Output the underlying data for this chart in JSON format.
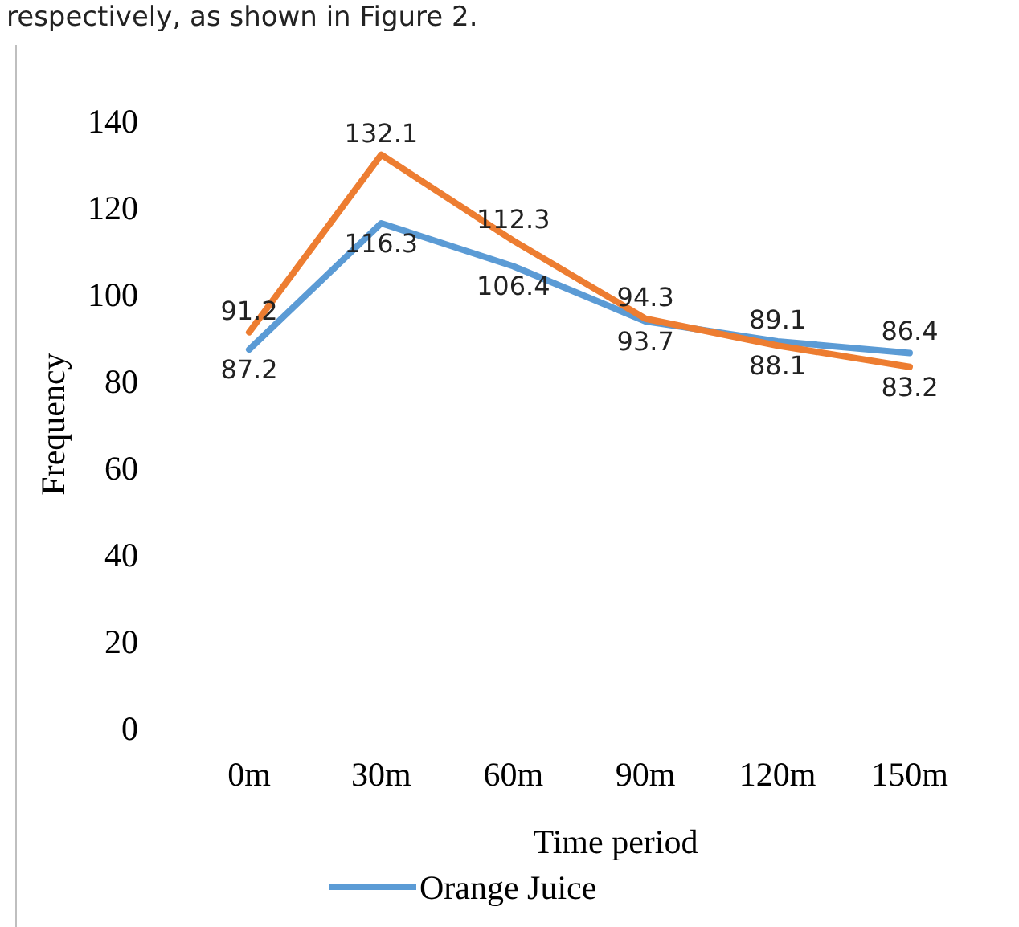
{
  "chart_data": {
    "type": "line",
    "xlabel": "Time period",
    "ylabel": "Frequency",
    "annotations": [
      "respectively, as shown in Figure 2."
    ],
    "categories": [
      "0m",
      "30m",
      "60m",
      "90m",
      "120m",
      "150m"
    ],
    "series": [
      {
        "name": "Orange Juice",
        "color": "#5b9bd5",
        "values": [
          87.2,
          116.3,
          106.4,
          93.7,
          89.1,
          86.4
        ]
      },
      {
        "color": "#ed7d31",
        "values": [
          91.2,
          132.1,
          112.3,
          94.3,
          88.1,
          83.2
        ]
      }
    ],
    "ylim": [
      0,
      140
    ],
    "yticks": [
      0,
      20,
      40,
      60,
      80,
      100,
      120,
      140
    ],
    "grid": false,
    "legend": "bottom",
    "data_labels": true,
    "marker": "none",
    "line_style": "solid"
  }
}
